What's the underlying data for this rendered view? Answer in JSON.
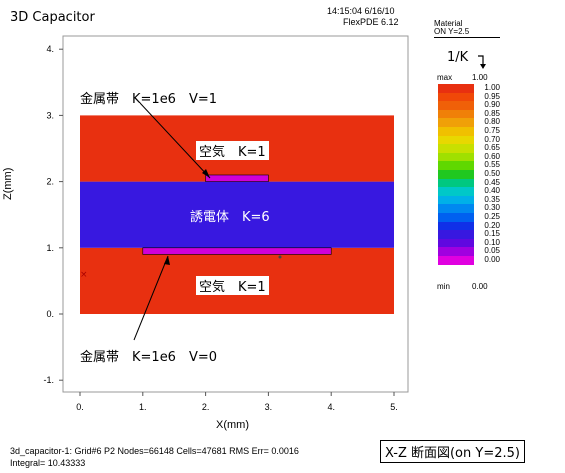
{
  "app_title": "3D Capacitor",
  "timestamp": "14:15:04 6/16/10",
  "version": "FlexPDE 6.12",
  "legend": {
    "header": "Material",
    "subheader": "ON Y=2.5",
    "variable": "1/K",
    "max_label": "max",
    "min_label": "min",
    "max_value": "1.00",
    "min_value": "0.00",
    "levels": [
      {
        "value": "1.00",
        "color": "#e83010"
      },
      {
        "value": "0.95",
        "color": "#f04808"
      },
      {
        "value": "0.90",
        "color": "#f06008"
      },
      {
        "value": "0.85",
        "color": "#f08008"
      },
      {
        "value": "0.80",
        "color": "#f0a008"
      },
      {
        "value": "0.75",
        "color": "#f0c000"
      },
      {
        "value": "0.70",
        "color": "#e8d800"
      },
      {
        "value": "0.65",
        "color": "#c8e000"
      },
      {
        "value": "0.60",
        "color": "#a0e000"
      },
      {
        "value": "0.55",
        "color": "#60d800"
      },
      {
        "value": "0.50",
        "color": "#20c820"
      },
      {
        "value": "0.45",
        "color": "#00c880"
      },
      {
        "value": "0.40",
        "color": "#00c8c8"
      },
      {
        "value": "0.35",
        "color": "#00b0e8"
      },
      {
        "value": "0.30",
        "color": "#0088f0"
      },
      {
        "value": "0.25",
        "color": "#0060f0"
      },
      {
        "value": "0.20",
        "color": "#1030e8"
      },
      {
        "value": "0.15",
        "color": "#3818e0"
      },
      {
        "value": "0.10",
        "color": "#6008e0"
      },
      {
        "value": "0.05",
        "color": "#a000e0"
      },
      {
        "value": "0.00",
        "color": "#e000e0"
      }
    ]
  },
  "chart_data": {
    "type": "heatmap",
    "xlabel": "X(mm)",
    "ylabel": "Z(mm)",
    "xlim": [
      -0.25,
      5.25
    ],
    "ylim": [
      -1.2,
      4.2
    ],
    "x_ticks": [
      "0.",
      "1.",
      "2.",
      "3.",
      "4.",
      "5."
    ],
    "y_ticks": [
      "-1.",
      "0.",
      "1.",
      "2.",
      "3.",
      "4."
    ],
    "x_tick_values": [
      0,
      1,
      2,
      3,
      4,
      5
    ],
    "y_tick_values": [
      -1,
      0,
      1,
      2,
      3,
      4
    ],
    "regions": [
      {
        "name": "air-bottom",
        "x": [
          0,
          5
        ],
        "z": [
          0,
          1
        ],
        "inv_k": 1.0,
        "color": "#e83010"
      },
      {
        "name": "dielectric",
        "x": [
          0,
          5
        ],
        "z": [
          1,
          2
        ],
        "inv_k": 0.1667,
        "color": "#3818e0"
      },
      {
        "name": "air-top",
        "x": [
          0,
          5
        ],
        "z": [
          2,
          3
        ],
        "inv_k": 1.0,
        "color": "#e83010"
      },
      {
        "name": "metal-bottom",
        "x": [
          1,
          4
        ],
        "z": [
          0.9,
          1.0
        ],
        "inv_k": 0.0,
        "color": "#d000d8"
      },
      {
        "name": "metal-top",
        "x": [
          2,
          3
        ],
        "z": [
          2.0,
          2.1
        ],
        "inv_k": 0.0,
        "color": "#d000d8"
      }
    ],
    "annotations": {
      "metal_top": "金属帯　K=1e6　V=1",
      "air_top": "空気　K=1",
      "dielectric": "誘電体　K=6",
      "air_bottom": "空気　K=1",
      "metal_bottom": "金属帯　K=1e6　V=0"
    }
  },
  "footer": {
    "stats": "3d_capacitor-1:  Grid#6  P2  Nodes=66148 Cells=47681 RMS Err= 0.0016",
    "integral": "Integral=  10.43333",
    "section_label": "X-Z 断面図(on Y=2.5)"
  }
}
